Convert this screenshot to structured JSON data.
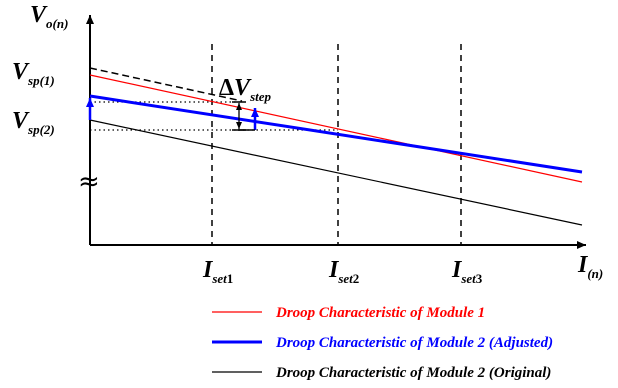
{
  "axes": {
    "y_label_main": "V",
    "y_label_sub": "o(n)",
    "x_label_main": "I",
    "x_label_sub": "(n)"
  },
  "set_points": {
    "vsp1_main": "V",
    "vsp1_sub": "sp(1)",
    "vsp2_main": "V",
    "vsp2_sub": "sp(2)"
  },
  "step": {
    "delta": "Δ",
    "main": "V",
    "sub": "step"
  },
  "current_markers": [
    {
      "main": "I",
      "sub": "set",
      "num": "1"
    },
    {
      "main": "I",
      "sub": "set",
      "num": "2"
    },
    {
      "main": "I",
      "sub": "set",
      "num": "3"
    }
  ],
  "break_symbol": "≈",
  "legend": [
    {
      "text": "Droop Characteristic of Module 1",
      "color": "#ff0000"
    },
    {
      "text": "Droop Characteristic of Module 2 (Adjusted)",
      "color": "#0000ff"
    },
    {
      "text": "Droop Characteristic of Module 2 (Original)",
      "color": "#000000"
    }
  ],
  "colors": {
    "module1": "#ff0000",
    "module2_adjusted": "#0000ff",
    "module2_original": "#000000",
    "axis": "#000000"
  }
}
